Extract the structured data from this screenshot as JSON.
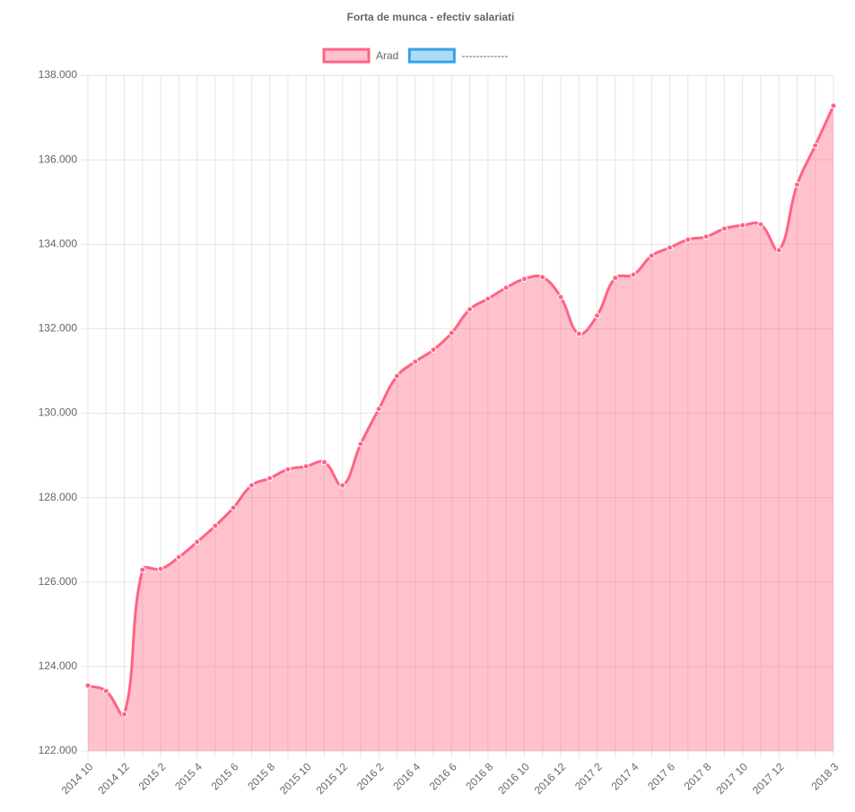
{
  "chart_data": {
    "type": "line",
    "title": "Forta de munca - efectiv salariati",
    "categories": [
      "2014 10",
      null,
      "2014 12",
      null,
      "2015 2",
      null,
      "2015 4",
      null,
      "2015 6",
      null,
      "2015 8",
      null,
      "2015 10",
      null,
      "2015 12",
      null,
      "2016 2",
      null,
      "2016 4",
      null,
      "2016 6",
      null,
      "2016 8",
      null,
      "2016 10",
      null,
      "2016 12",
      null,
      "2017 2",
      null,
      "2017 4",
      null,
      "2017 6",
      null,
      "2017 8",
      null,
      "2017 10",
      null,
      "2017 12",
      null,
      null,
      "2018 3"
    ],
    "series": [
      {
        "name": "Arad",
        "color": "#ff6384",
        "fill": "rgba(255,99,132,0.4)",
        "values": [
          123550,
          123420,
          122870,
          126290,
          126310,
          126590,
          126950,
          127330,
          127760,
          128290,
          128460,
          128670,
          128740,
          128840,
          128290,
          129270,
          130100,
          130880,
          131220,
          131500,
          131900,
          132460,
          132710,
          132970,
          133180,
          133220,
          132750,
          131880,
          132310,
          133200,
          133280,
          133730,
          133920,
          134110,
          134180,
          134370,
          134450,
          134470,
          133860,
          135410,
          136340,
          137280
        ]
      },
      {
        "name": "-------------",
        "color": "#36a2eb",
        "fill": "rgba(54,162,235,0.4)",
        "values": [
          null,
          null,
          null,
          null,
          null,
          null,
          null,
          null,
          null,
          null,
          null,
          null,
          null,
          null,
          null,
          null,
          null,
          null,
          null,
          null,
          null,
          null,
          null,
          null,
          null,
          null,
          null,
          null,
          null,
          null,
          null,
          null,
          null,
          null,
          null,
          null,
          null,
          null,
          null,
          null,
          null,
          null
        ]
      }
    ],
    "ylim": [
      122000,
      138000
    ],
    "yticks": [
      {
        "value": 122000,
        "label": "122.000"
      },
      {
        "value": 124000,
        "label": "124.000"
      },
      {
        "value": 126000,
        "label": "126.000"
      },
      {
        "value": 128000,
        "label": "128.000"
      },
      {
        "value": 130000,
        "label": "130.000"
      },
      {
        "value": 132000,
        "label": "132.000"
      },
      {
        "value": 134000,
        "label": "134.000"
      },
      {
        "value": 136000,
        "label": "136.000"
      },
      {
        "value": 138000,
        "label": "138.000"
      }
    ],
    "grid": true,
    "legend": "top"
  }
}
